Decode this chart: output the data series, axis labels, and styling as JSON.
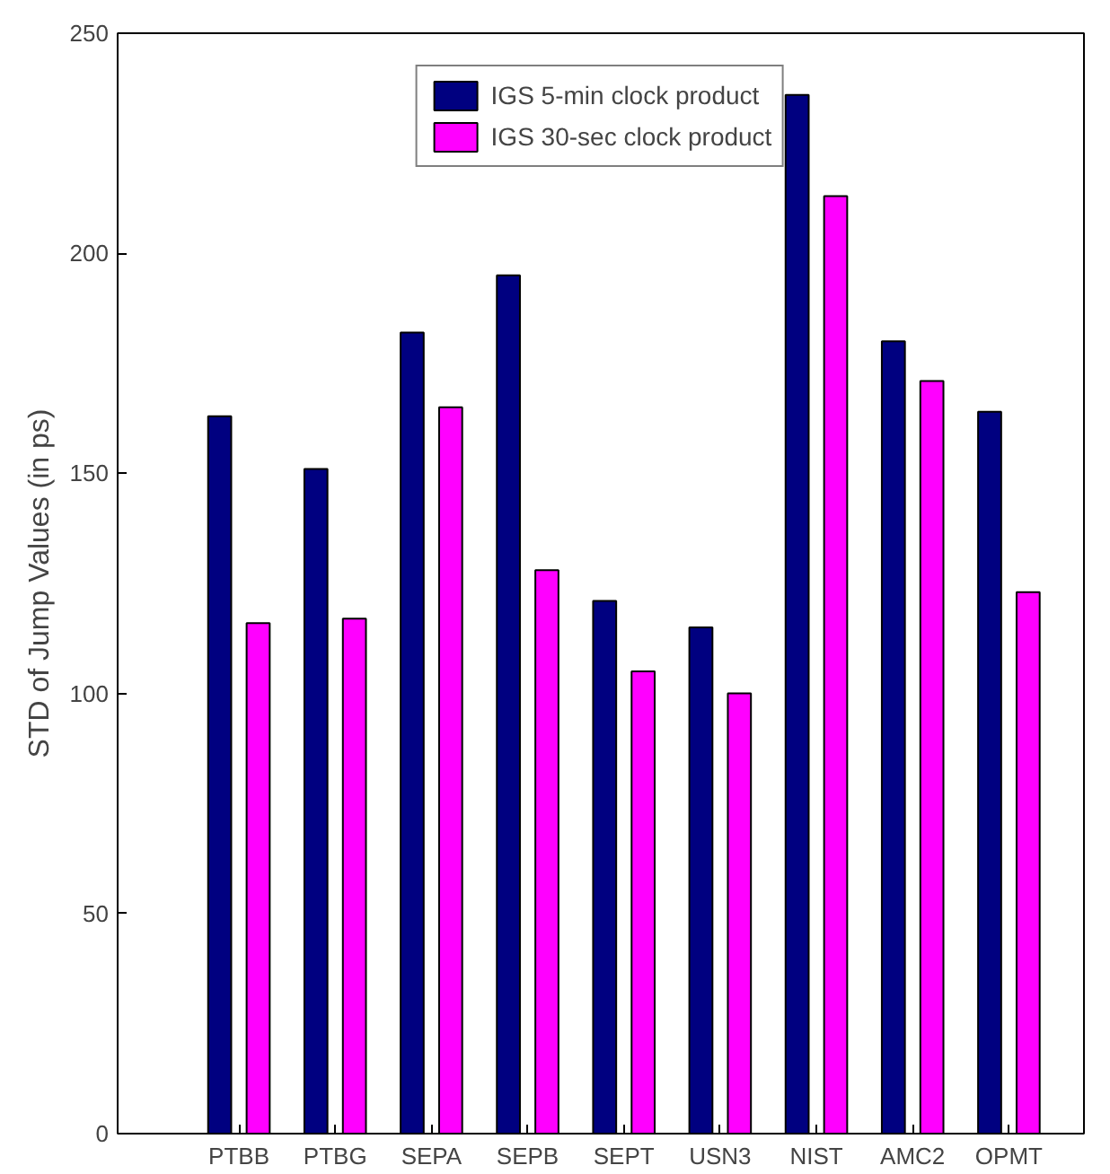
{
  "chart_data": {
    "type": "bar",
    "ylabel": "STD of Jump Values (in ps)",
    "categories": [
      "PTBB",
      "PTBG",
      "SEPA",
      "SEPB",
      "SEPT",
      "USN3",
      "NIST",
      "AMC2",
      "OPMT"
    ],
    "series": [
      {
        "name": "IGS 5-min clock product",
        "color": "#000080",
        "values": [
          163,
          151,
          182,
          195,
          121,
          115,
          236,
          180,
          164
        ]
      },
      {
        "name": "IGS 30-sec clock product",
        "color": "#ff00ff",
        "values": [
          116,
          117,
          165,
          128,
          105,
          100,
          213,
          171,
          123
        ]
      }
    ],
    "ylim": [
      0,
      250
    ],
    "yticks": [
      0,
      50,
      100,
      150,
      200,
      250
    ],
    "grid": false,
    "legend": "top"
  }
}
